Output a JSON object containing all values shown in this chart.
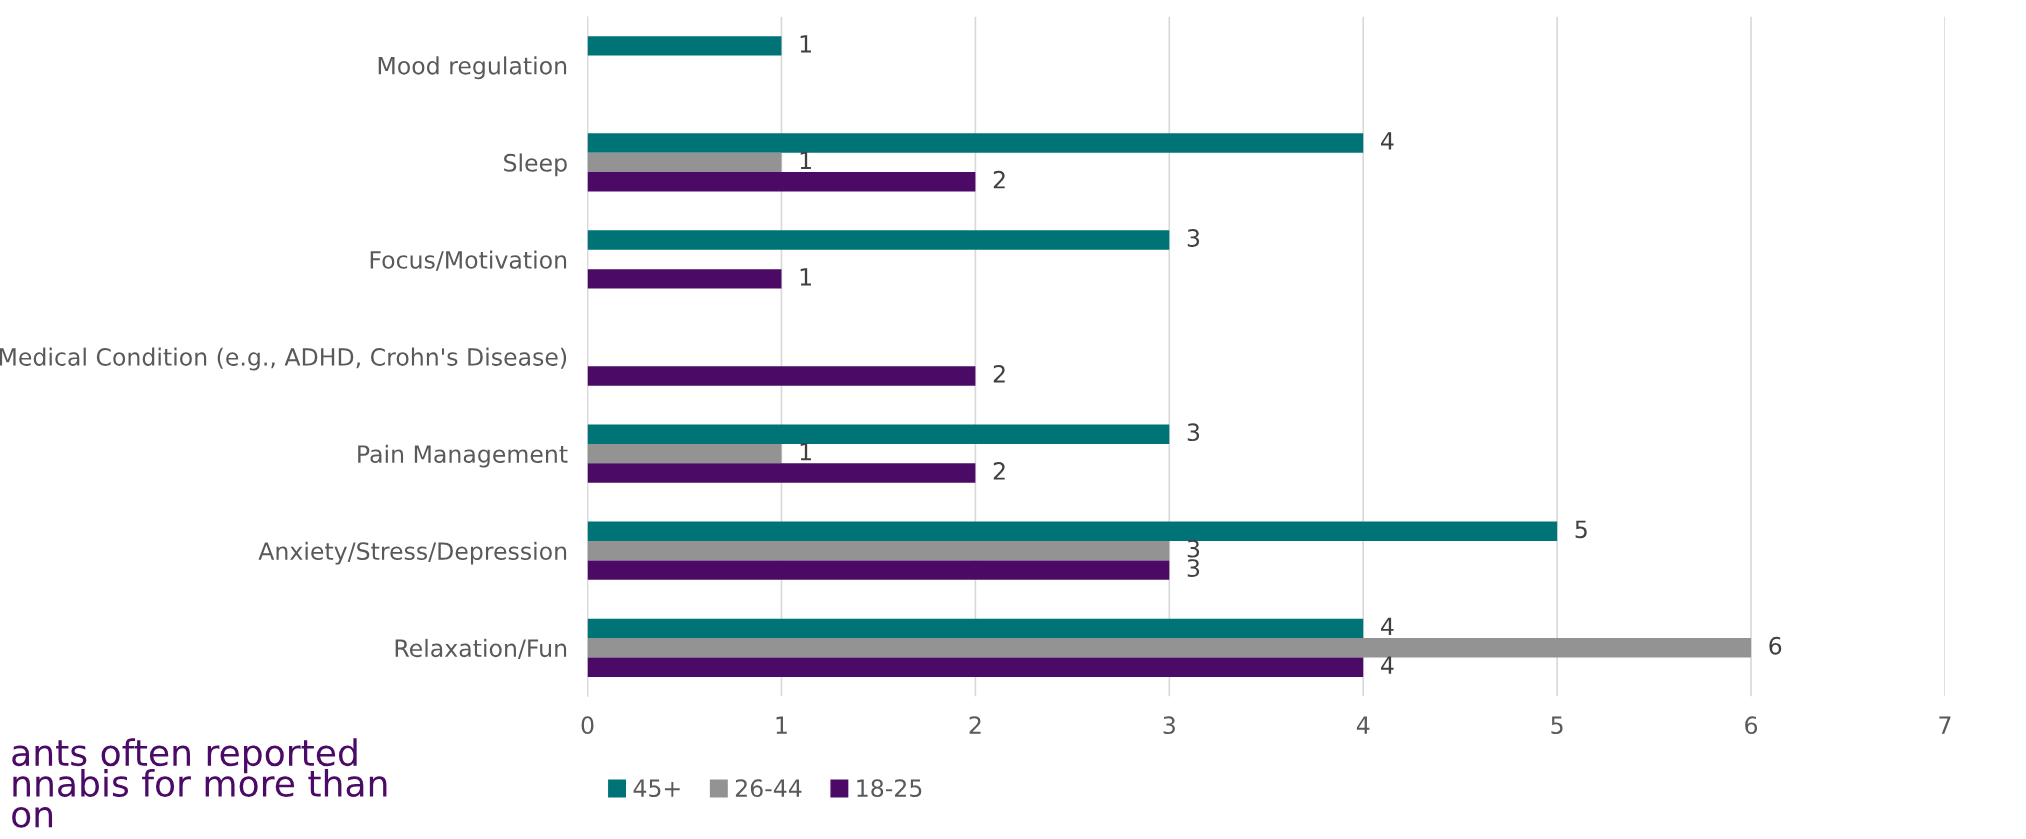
{
  "chart_data": {
    "type": "bar",
    "orientation": "horizontal",
    "categories": [
      "Mood regulation",
      "Sleep",
      "Focus/Motivation",
      "Medical Condition (e.g., ADHD, Crohn's Disease)",
      "Pain Management",
      "Anxiety/Stress/Depression",
      "Relaxation/Fun"
    ],
    "series": [
      {
        "name": "45+",
        "color": "#007377",
        "values": [
          1,
          4,
          3,
          null,
          3,
          5,
          4
        ]
      },
      {
        "name": "26-44",
        "color": "#939393",
        "values": [
          null,
          1,
          null,
          null,
          1,
          3,
          6
        ]
      },
      {
        "name": "18-25",
        "color": "#4b0a66",
        "values": [
          null,
          2,
          1,
          2,
          2,
          3,
          4
        ]
      }
    ],
    "xlim": [
      0,
      7
    ],
    "xticks": [
      0,
      1,
      2,
      3,
      4,
      5,
      6,
      7
    ],
    "grid": "x",
    "legend": "bottom",
    "data_labels": true,
    "annotations": [
      "ants often reported\nnnabis for more than\non"
    ]
  }
}
